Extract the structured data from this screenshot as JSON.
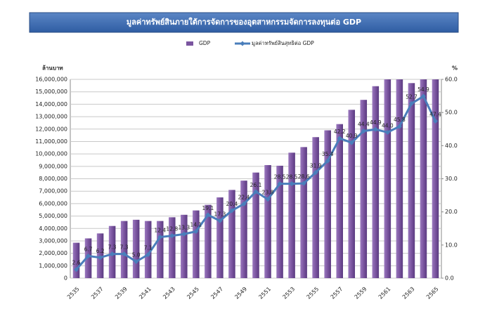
{
  "chart_data": {
    "type": "bar_line",
    "title": "มูลค่าทรัพย์สินภายใต้การจัดการของอุตสาหกรรมจัดการลงทุนต่อ GDP",
    "y_label": "ล้านบาท",
    "y2_label": "%",
    "categories": [
      "2535",
      null,
      "2537",
      null,
      "2539",
      null,
      "2541",
      null,
      "2543",
      null,
      "2545",
      null,
      "2547",
      null,
      "2549",
      null,
      "2551",
      null,
      "2553",
      null,
      "2555",
      null,
      "2557",
      null,
      "2559",
      null,
      "2561",
      null,
      "2563",
      null,
      "2565"
    ],
    "series": [
      {
        "name": "GDP",
        "type": "bar",
        "color": "#7b55a0",
        "values": [
          2850000,
          3200000,
          3600000,
          4200000,
          4600000,
          4700000,
          4600000,
          4600000,
          4900000,
          5100000,
          5450000,
          5900000,
          6500000,
          7100000,
          7850000,
          8500000,
          9100000,
          9050000,
          10100000,
          10550000,
          11350000,
          11900000,
          12400000,
          13550000,
          14350000,
          15450000,
          16300000,
          16000000,
          15700000,
          16100000,
          16300000
        ]
      },
      {
        "name": "มูลค่าทรัพย์สินสุทธิต่อ GDP",
        "type": "line",
        "axis": "y2",
        "color": "#4a7ebb",
        "values": [
          2.6,
          6.7,
          6.2,
          7.3,
          7.3,
          5.0,
          7.1,
          12.4,
          12.8,
          13.3,
          14.1,
          19.1,
          17.3,
          20.4,
          22.4,
          26.1,
          23.8,
          28.5,
          28.5,
          28.6,
          31.9,
          35.4,
          42.2,
          40.9,
          44.4,
          44.9,
          44.0,
          45.8,
          52.7,
          54.9,
          47.4
        ],
        "value_labels": [
          "2.6",
          "6.7",
          "6.2",
          "7.3",
          "7.3",
          "5.0",
          "7.1",
          "12.4",
          "12.8",
          "13.3",
          "14.1",
          "19.1",
          "17.3",
          "20.4",
          "22.4",
          "26.1",
          "23.8",
          "28.5",
          "28.5",
          "28.6",
          "31.9",
          "35.4",
          "42.2",
          "40.9",
          "44.4",
          "44.9",
          "44.0",
          "45.8",
          "52.7",
          "54.9",
          "47.4"
        ]
      }
    ],
    "ylim": [
      0,
      16000000
    ],
    "yticks": [
      0,
      {
        "value": 1000000,
        "label": "1,000,000"
      },
      {
        "value": 2000000,
        "label": "2,000,000"
      },
      {
        "value": 3000000,
        "label": "3,000,000"
      },
      {
        "value": 4000000,
        "label": "4,000,000"
      },
      {
        "value": 5000000,
        "label": "5,000,000"
      },
      {
        "value": 6000000,
        "label": "6,000,000"
      },
      {
        "value": 7000000,
        "label": "7,000,000"
      },
      {
        "value": 8000000,
        "label": "8,000,000"
      },
      {
        "value": 9000000,
        "label": "9,000,000"
      },
      {
        "value": 10000000,
        "label": "10,000,000"
      },
      {
        "value": 11000000,
        "label": "11,000,000"
      },
      {
        "value": 12000000,
        "label": "12,000,000"
      },
      {
        "value": 13000000,
        "label": "13,000,000"
      },
      {
        "value": 14000000,
        "label": "14,000,000"
      },
      {
        "value": 15000000,
        "label": "15,000,000"
      },
      {
        "value": 16000000,
        "label": "16,000,000"
      }
    ],
    "y2lim": [
      0,
      60
    ],
    "y2ticks": [
      {
        "value": 0,
        "label": "0.0"
      },
      {
        "value": 10,
        "label": "10.0"
      },
      {
        "value": 20,
        "label": "20.0"
      },
      {
        "value": 30,
        "label": "30.0"
      },
      {
        "value": 40,
        "label": "40.0"
      },
      {
        "value": 50,
        "label": "50.0"
      },
      {
        "value": 60,
        "label": "60.0"
      }
    ],
    "grid": true,
    "legend": "top"
  }
}
